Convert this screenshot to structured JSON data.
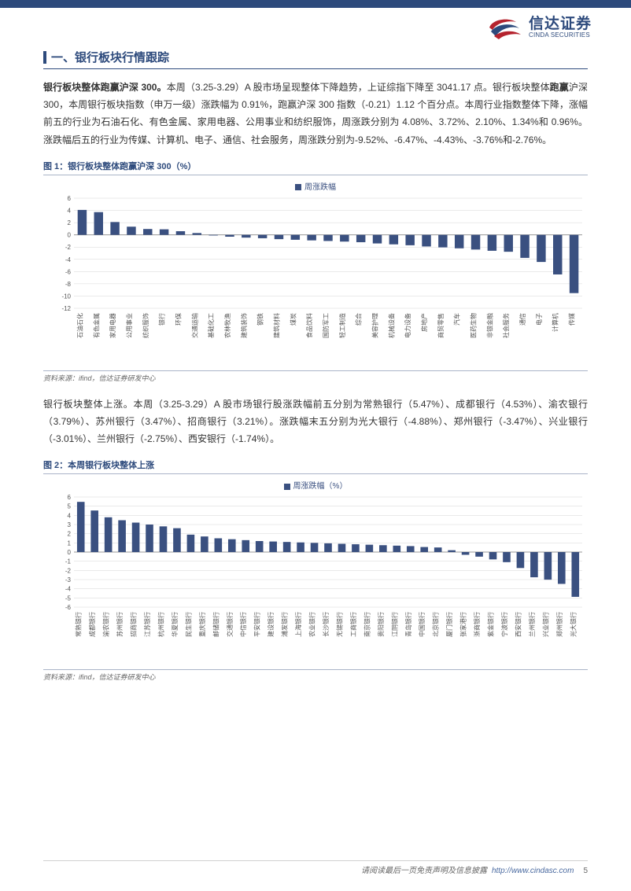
{
  "brand": {
    "name_cn": "信达证券",
    "name_en": "CINDA SECURITIES",
    "url": "http://www.cindasc.com",
    "page_no": "5",
    "disclaimer": "请阅读最后一页免责声明及信息披露",
    "logo_color_red": "#b5232e",
    "logo_color_blue": "#2d4a7c"
  },
  "section": {
    "heading": "一、银行板块行情跟踪"
  },
  "para1": {
    "lead_bold": "银行板块整体跑赢沪深 300。",
    "rest": "本周（3.25-3.29）A 股市场呈现整体下降趋势，上证综指下降至 3041.17 点。银行板块整体",
    "bold2": "跑赢",
    "rest2": "沪深 300，本周银行板块指数（申万一级）涨跌幅为 0.91%，跑赢沪深 300 指数（-0.21）1.12 个百分点。本周行业指数整体下降，涨幅前五的行业为石油石化、有色金属、家用电器、公用事业和纺织服饰，周涨跌分别为 4.08%、3.72%、2.10%、1.34%和 0.96%。涨跌幅后五的行业为传媒、计算机、电子、通信、社会服务，周涨跌分别为-9.52%、-6.47%、-4.43%、-3.76%和-2.76%。"
  },
  "para2": {
    "text": "银行板块整体上涨。本周（3.25-3.29）A 股市场银行股涨跌幅前五分别为常熟银行（5.47%）、成都银行（4.53%）、渝农银行（3.79%）、苏州银行（3.47%）、招商银行（3.21%）。涨跌幅末五分别为光大银行（-4.88%）、郑州银行（-3.47%）、兴业银行（-3.01%）、兰州银行（-2.75%）、西安银行（-1.74%）。"
  },
  "fig1": {
    "title": "图 1：银行板块整体跑赢沪深 300（%）",
    "legend": "周涨跌幅",
    "source": "资料来源：ifind，信达证券研发中心",
    "type": "bar",
    "bar_color": "#3a5080",
    "grid_color": "#d6d6d6",
    "axis_color": "#999999",
    "label_color": "#555555",
    "label_fontsize": 8,
    "tick_fontsize": 8,
    "ylim": [
      -12,
      6
    ],
    "ytick_step": 2,
    "bar_width": 0.55,
    "categories": [
      "石油石化",
      "有色金属",
      "家用电器",
      "公用事业",
      "纺织服饰",
      "银行",
      "环保",
      "交通运输",
      "基础化工",
      "农林牧渔",
      "建筑装饰",
      "钢铁",
      "建筑材料",
      "煤炭",
      "食品饮料",
      "国防军工",
      "轻工制造",
      "综合",
      "美容护理",
      "机械设备",
      "电力设备",
      "房地产",
      "商贸零售",
      "汽车",
      "医药生物",
      "非银金融",
      "社会服务",
      "通信",
      "电子",
      "计算机",
      "传媒"
    ],
    "values": [
      4.08,
      3.72,
      2.1,
      1.34,
      0.96,
      0.91,
      0.6,
      0.3,
      -0.1,
      -0.3,
      -0.45,
      -0.55,
      -0.7,
      -0.8,
      -0.9,
      -1.0,
      -1.1,
      -1.2,
      -1.4,
      -1.55,
      -1.7,
      -1.9,
      -2.05,
      -2.2,
      -2.4,
      -2.6,
      -2.76,
      -3.76,
      -4.43,
      -6.47,
      -9.52
    ]
  },
  "fig2": {
    "title": "图 2：本周银行板块整体上涨",
    "legend": "周涨跌幅（%）",
    "source": "资料来源：ifind，信达证券研发中心",
    "type": "bar",
    "bar_color": "#3a5080",
    "grid_color": "#d6d6d6",
    "axis_color": "#999999",
    "label_color": "#555555",
    "label_fontsize": 8,
    "tick_fontsize": 8,
    "ylim": [
      -6,
      6
    ],
    "ytick_step": 1,
    "bar_width": 0.55,
    "categories": [
      "常熟银行",
      "成都银行",
      "渝农银行",
      "苏州银行",
      "招商银行",
      "江苏银行",
      "杭州银行",
      "华夏银行",
      "民生银行",
      "重庆银行",
      "邮储银行",
      "交通银行",
      "中信银行",
      "平安银行",
      "建设银行",
      "浦发银行",
      "上海银行",
      "农业银行",
      "长沙银行",
      "无锡银行",
      "工商银行",
      "南京银行",
      "贵阳银行",
      "江阴银行",
      "青岛银行",
      "中国银行",
      "北京银行",
      "厦门银行",
      "张家港行",
      "浙商银行",
      "紫金银行",
      "宁波银行",
      "西安银行",
      "兰州银行",
      "兴业银行",
      "郑州银行",
      "光大银行"
    ],
    "values": [
      5.47,
      4.53,
      3.79,
      3.47,
      3.21,
      3.0,
      2.8,
      2.6,
      1.9,
      1.7,
      1.5,
      1.4,
      1.3,
      1.2,
      1.15,
      1.1,
      1.05,
      1.0,
      0.95,
      0.9,
      0.85,
      0.8,
      0.75,
      0.7,
      0.65,
      0.55,
      0.5,
      0.2,
      -0.3,
      -0.5,
      -0.8,
      -1.1,
      -1.74,
      -2.75,
      -3.01,
      -3.47,
      -4.88
    ]
  }
}
